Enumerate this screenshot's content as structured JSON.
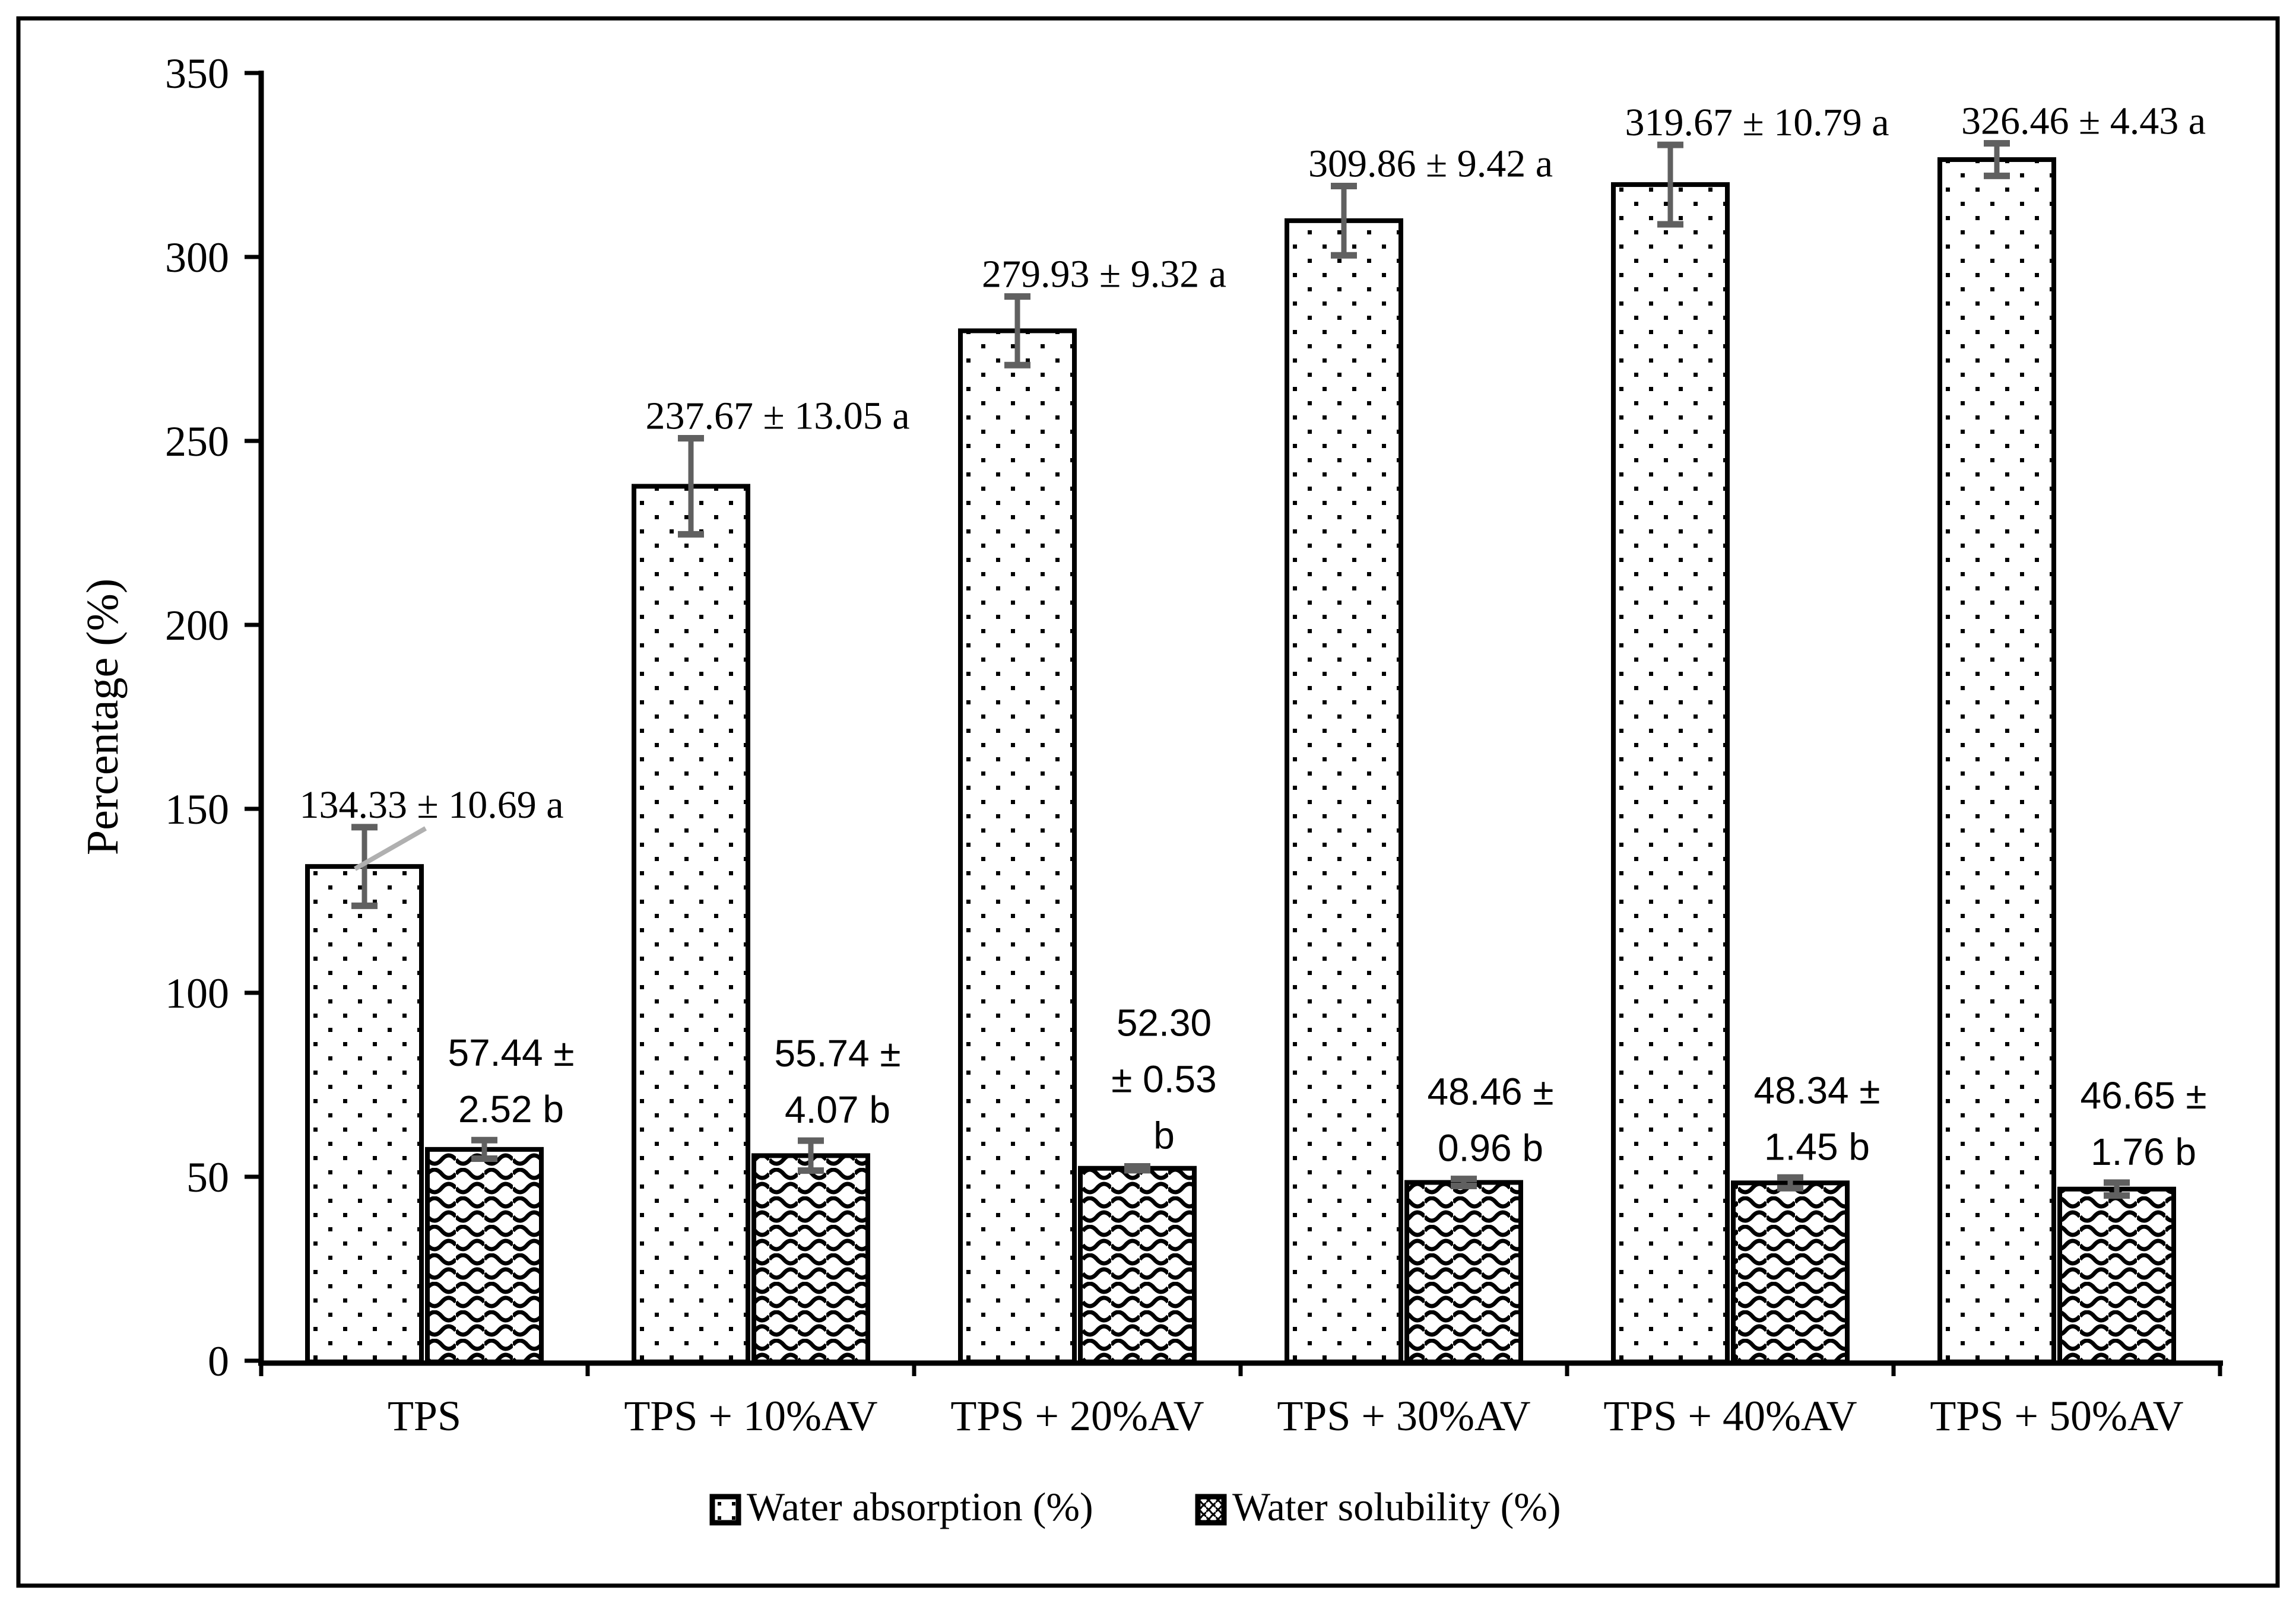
{
  "figure": {
    "background": "#ffffff",
    "border_color": "#000000"
  },
  "styles": {
    "bar_fill": "#ffffff",
    "pattern_color": "#000000",
    "bar_stroke": "#000000",
    "axis_color": "#000000",
    "error_bar_color": "#606060",
    "leader_line_color": "#b0b0b0",
    "text_color": "#000000"
  },
  "chart_data": {
    "type": "bar",
    "title": "",
    "xlabel": "",
    "ylabel": "Percentage (%)",
    "ylim": [
      0,
      350
    ],
    "yticks": [
      0,
      50,
      100,
      150,
      200,
      250,
      300,
      350
    ],
    "grid": false,
    "legend_position": "bottom",
    "categories": [
      "TPS",
      "TPS + 10%AV",
      "TPS + 20%AV",
      "TPS + 30%AV",
      "TPS + 40%AV",
      "TPS + 50%AV"
    ],
    "series": [
      {
        "name": "Water absorption (%)",
        "pattern": "dots",
        "values": [
          134.33,
          237.67,
          279.93,
          309.86,
          319.67,
          326.46
        ],
        "errors": [
          10.69,
          13.05,
          9.32,
          9.42,
          10.79,
          4.43
        ],
        "significance": [
          "a",
          "a",
          "a",
          "a",
          "a",
          "a"
        ],
        "labels": [
          "134.33 ± 10.69 a",
          "237.67 ± 13.05 a",
          "279.93 ± 9.32 a",
          "309.86 ± 9.42 a",
          "319.67 ± 10.79 a",
          "326.46 ± 4.43 a"
        ]
      },
      {
        "name": "Water solubility (%)",
        "pattern": "wave",
        "values": [
          57.44,
          55.74,
          52.3,
          48.46,
          48.34,
          46.65
        ],
        "errors": [
          2.52,
          4.07,
          0.53,
          0.96,
          1.45,
          1.76
        ],
        "significance": [
          "b",
          "b",
          "b",
          "b",
          "b",
          "b"
        ],
        "labels": [
          "57.44 ± 2.52 b",
          "55.74 ± 4.07 b",
          "52.30 ± 0.53 b",
          "48.46 ± 0.96 b",
          "48.34 ± 1.45 b",
          "46.65 ± 1.76 b"
        ],
        "label_lines": [
          [
            "57.44 ±",
            "2.52 b"
          ],
          [
            "55.74 ±",
            "4.07 b"
          ],
          [
            "52.30",
            "± 0.53",
            "b"
          ],
          [
            "48.46 ±",
            "0.96 b"
          ],
          [
            "48.34 ±",
            "1.45 b"
          ],
          [
            "46.65 ±",
            "1.76 b"
          ]
        ]
      }
    ],
    "annotations": {
      "leader_line_group": 0
    }
  }
}
